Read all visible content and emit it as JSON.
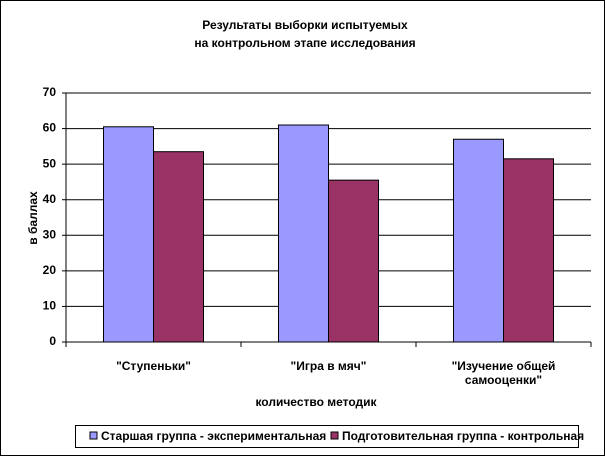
{
  "chart_data": {
    "type": "bar",
    "title": [
      "Результаты выборки испытуемых",
      "на контрольном этапе исследования"
    ],
    "y_label": "в баллах",
    "x_label": "количество методик",
    "categories": [
      "\"Ступеньки\"",
      "\"Игра в мяч\"",
      "\"Изучение общей самооценки\""
    ],
    "series": [
      {
        "name": "Старшая группа - экспериментальная",
        "color": "#9999ff",
        "values": [
          60.5,
          61,
          57
        ]
      },
      {
        "name": "Подготовительная группа - контрольная",
        "color": "#993366",
        "values": [
          53.5,
          45.5,
          51.5
        ]
      }
    ],
    "ylim": [
      0,
      70
    ],
    "yticks": [
      0,
      10,
      20,
      30,
      40,
      50,
      60,
      70
    ],
    "grid": true,
    "legend": "bottom"
  }
}
